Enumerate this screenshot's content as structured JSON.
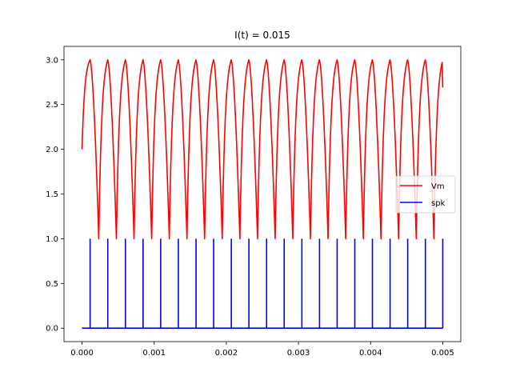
{
  "chart_data": {
    "type": "line",
    "title": "I(t) = 0.015",
    "xlabel": "",
    "ylabel": "",
    "xlim": [
      -0.00025,
      0.00525
    ],
    "ylim": [
      -0.15,
      3.15
    ],
    "xticks": [
      0.0,
      0.001,
      0.002,
      0.003,
      0.004,
      0.005
    ],
    "xtick_labels": [
      "0.000",
      "0.001",
      "0.002",
      "0.003",
      "0.004",
      "0.005"
    ],
    "yticks": [
      0.0,
      0.5,
      1.0,
      1.5,
      2.0,
      2.5,
      3.0
    ],
    "ytick_labels": [
      "0.0",
      "0.5",
      "1.0",
      "1.5",
      "2.0",
      "2.5",
      "3.0"
    ],
    "grid": false,
    "legend_position": "center-right",
    "series": [
      {
        "name": "Vm",
        "color": "#ff0000",
        "description_points": {
          "x": [
            0.0,
            2.5e-05,
            5e-05,
            7.5e-05,
            0.0001,
            0.000112,
            0.000232,
            0.000257,
            0.000282,
            0.000307,
            0.000332,
            0.000356
          ],
          "y": [
            2.0,
            2.42,
            2.69,
            2.88,
            2.99,
            3.0,
            1.0,
            1.75,
            2.25,
            2.6,
            2.85,
            3.0
          ]
        },
        "first_peak_x": 0.000112,
        "period": 0.0002445,
        "min_value": 1.0,
        "max_value": 3.0,
        "end_x": 0.005,
        "end_y": 2.69
      },
      {
        "name": "spk",
        "color": "#0000ff",
        "baseline": 0.0,
        "spike_height": 1.0,
        "spike_times": [
          0.000112,
          0.000357,
          0.000601,
          0.000846,
          0.00109,
          0.001335,
          0.00158,
          0.001824,
          0.002069,
          0.002313,
          0.002558,
          0.002802,
          0.003047,
          0.003292,
          0.003536,
          0.003781,
          0.004025,
          0.00427,
          0.004514,
          0.004759,
          0.005
        ],
        "x_range": [
          0.0,
          0.005
        ]
      }
    ]
  }
}
